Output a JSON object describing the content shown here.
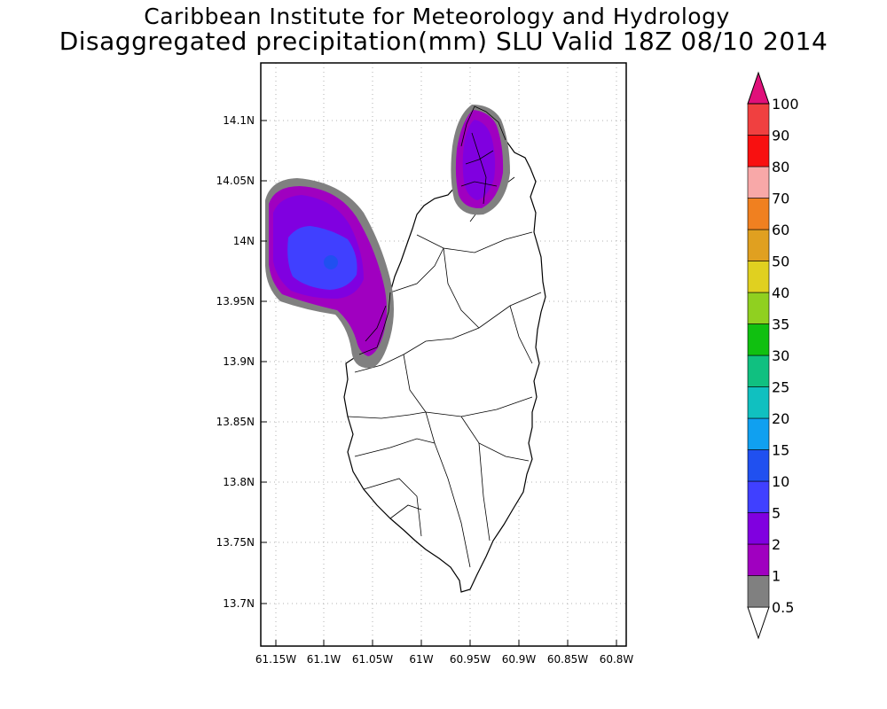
{
  "header": {
    "institute": "Caribbean Institute for Meteorology and Hydrology",
    "product": "Disaggregated precipitation(mm) SLU Valid 18Z 08/10 2014"
  },
  "map": {
    "y_ticks": [
      "14.1N",
      "14.05N",
      "14N",
      "13.95N",
      "13.9N",
      "13.85N",
      "13.8N",
      "13.75N",
      "13.7N"
    ],
    "x_ticks": [
      "61.15W",
      "61.1W",
      "61.05W",
      "61W",
      "60.95W",
      "60.9W",
      "60.85W",
      "60.8W"
    ]
  },
  "colorbar": {
    "labels": [
      "0.5",
      "1",
      "2",
      "5",
      "10",
      "15",
      "20",
      "25",
      "30",
      "35",
      "40",
      "50",
      "60",
      "70",
      "80",
      "90",
      "100"
    ],
    "colors": [
      "#808080",
      "#a000c0",
      "#8000e0",
      "#4040ff",
      "#2050f0",
      "#10a0f0",
      "#10c0c0",
      "#10c080",
      "#10c010",
      "#90d020",
      "#e0d020",
      "#e0a020",
      "#f08020",
      "#f8a8a8",
      "#f81010",
      "#f04040",
      "#e0107a"
    ]
  }
}
